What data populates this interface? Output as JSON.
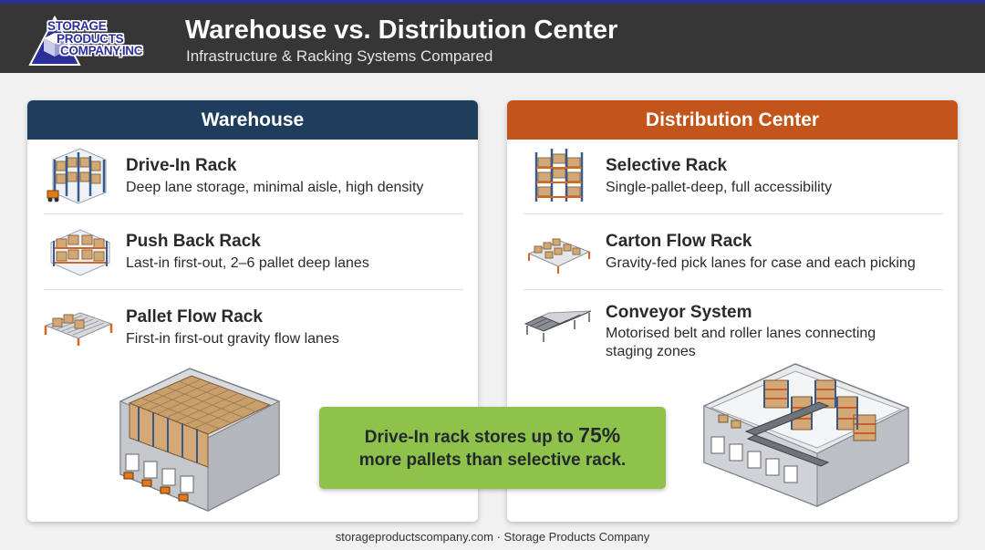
{
  "logo": {
    "line1": "STORAGE",
    "line2": "PRODUCTS",
    "line3": "COMPANY,INC"
  },
  "header": {
    "title": "Warehouse vs. Distribution Center",
    "subtitle": "Infrastructure & Racking Systems Compared"
  },
  "warehouse": {
    "heading": "Warehouse",
    "items": [
      {
        "name": "Drive-In Rack",
        "desc": "Deep lane storage, minimal aisle, high density",
        "icon": "drive-in-rack-icon"
      },
      {
        "name": "Push Back Rack",
        "desc": "Last-in first-out, 2–6 pallet deep lanes",
        "icon": "push-back-rack-icon"
      },
      {
        "name": "Pallet Flow Rack",
        "desc": "First-in first-out gravity flow lanes",
        "icon": "pallet-flow-rack-icon"
      }
    ]
  },
  "distribution": {
    "heading": "Distribution Center",
    "items": [
      {
        "name": "Selective Rack",
        "desc": "Single-pallet-deep, full accessibility",
        "icon": "selective-rack-icon"
      },
      {
        "name": "Carton Flow Rack",
        "desc": "Gravity-fed pick lanes for case and each picking",
        "icon": "carton-flow-rack-icon"
      },
      {
        "name": "Conveyor System",
        "desc": "Motorised belt and roller lanes connecting staging zones",
        "icon": "conveyor-system-icon"
      }
    ]
  },
  "callout": {
    "pre": "Drive-In rack stores up to",
    "highlight": "75%",
    "post": "more pallets than selective rack."
  },
  "footer": {
    "site": "storageproductscompany.com",
    "separator": "·",
    "company": "Storage Products Company"
  },
  "colors": {
    "header_bg": "#363636",
    "warehouse_accent": "#1f3d5c",
    "distribution_accent": "#c3551b",
    "callout_bg": "#8ec24a",
    "rack_blue": "#3a5a8a",
    "rack_orange": "#d9661e",
    "box": "#d4a874"
  }
}
